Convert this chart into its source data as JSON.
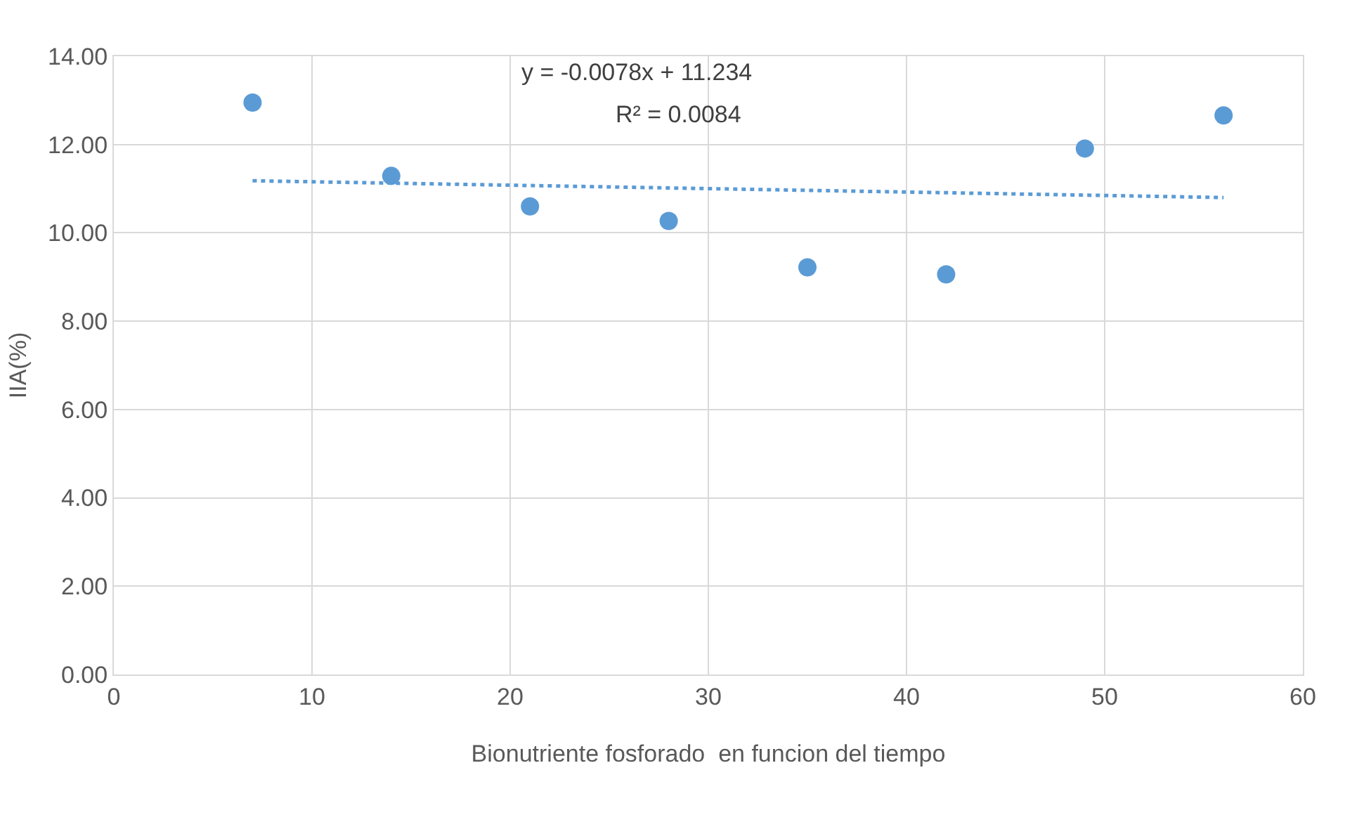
{
  "chart_data": {
    "type": "scatter",
    "xlabel": "Bionutriente fosforado  en funcion del tiempo",
    "ylabel": "IIA(%)",
    "series": [
      {
        "color": "#5b9bd5",
        "marker": "circle",
        "x": [
          7,
          14,
          21,
          28,
          35,
          42,
          49,
          56
        ],
        "values": [
          12.95,
          11.29,
          10.6,
          10.27,
          9.22,
          9.06,
          11.91,
          12.66
        ]
      },
      {
        "type": "line",
        "color": "#5b9bd5",
        "line_style": "dotted",
        "x": [
          7,
          56
        ],
        "values": [
          11.18,
          10.8
        ]
      }
    ],
    "annotations": [
      "y = -0.0078x + 11.234",
      "R² = 0.0084"
    ],
    "xlim": [
      0,
      60
    ],
    "xticks": [
      0,
      10,
      20,
      30,
      40,
      50,
      60
    ],
    "ylim": [
      0,
      14
    ],
    "yticks": [
      {
        "value": 0,
        "label": "0.00"
      },
      {
        "value": 2,
        "label": "2.00"
      },
      {
        "value": 4,
        "label": "4.00"
      },
      {
        "value": 6,
        "label": "6.00"
      },
      {
        "value": 8,
        "label": "8.00"
      },
      {
        "value": 10,
        "label": "10.00"
      },
      {
        "value": 12,
        "label": "12.00"
      },
      {
        "value": 14,
        "label": "14.00"
      }
    ],
    "grid": true
  }
}
